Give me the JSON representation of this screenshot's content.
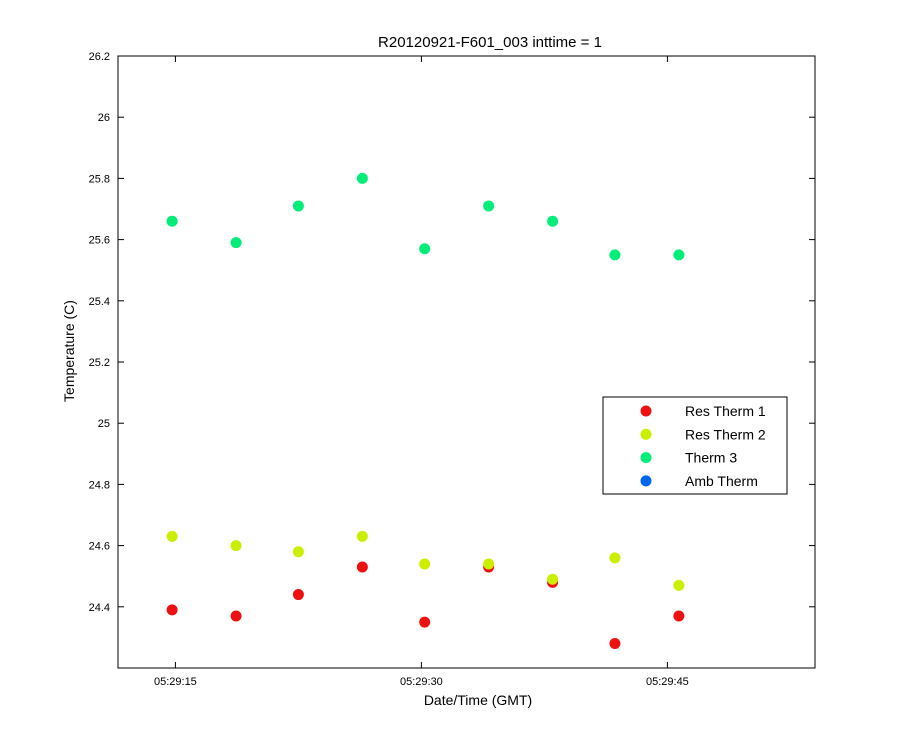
{
  "chart_data": {
    "type": "scatter",
    "title": "R20120921-F601_003 inttime = 1",
    "xlabel": "Date/Time (GMT)",
    "ylabel": "Temperature (C)",
    "xlim": [
      11.5,
      54.0
    ],
    "ylim": [
      24.2,
      26.2
    ],
    "xticks": [
      {
        "value": 15,
        "label": "05:29:15"
      },
      {
        "value": 30,
        "label": "05:29:30"
      },
      {
        "value": 45,
        "label": "05:29:45"
      }
    ],
    "yticks": [
      {
        "value": 24.4,
        "label": "24.4"
      },
      {
        "value": 24.6,
        "label": "24.6"
      },
      {
        "value": 24.8,
        "label": "24.8"
      },
      {
        "value": 25.0,
        "label": "25"
      },
      {
        "value": 25.2,
        "label": "25.2"
      },
      {
        "value": 25.4,
        "label": "25.4"
      },
      {
        "value": 25.6,
        "label": "25.6"
      },
      {
        "value": 25.8,
        "label": "25.8"
      },
      {
        "value": 26.0,
        "label": "26"
      },
      {
        "value": 26.2,
        "label": "26.2"
      }
    ],
    "x": [
      14.8,
      18.7,
      22.5,
      26.4,
      30.2,
      34.1,
      38.0,
      41.8,
      45.7
    ],
    "grid": false,
    "legend_position": "right",
    "series": [
      {
        "name": "Res Therm 1",
        "color": "#ee1111",
        "values": [
          24.39,
          24.37,
          24.44,
          24.53,
          24.35,
          24.53,
          24.48,
          24.28,
          24.37
        ]
      },
      {
        "name": "Res Therm 2",
        "color": "#ccee00",
        "values": [
          24.63,
          24.6,
          24.58,
          24.63,
          24.54,
          24.54,
          24.49,
          24.56,
          24.47
        ]
      },
      {
        "name": "Therm 3",
        "color": "#00ee77",
        "values": [
          25.66,
          25.59,
          25.71,
          25.8,
          25.57,
          25.71,
          25.66,
          25.55,
          25.55
        ]
      },
      {
        "name": "Amb Therm",
        "color": "#0066ee",
        "values": []
      }
    ]
  }
}
